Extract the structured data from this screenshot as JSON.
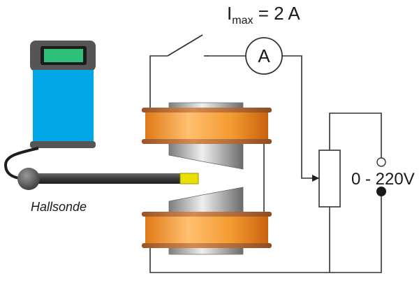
{
  "current_label": {
    "symbol": "I",
    "subscript": "max",
    "value": " = 2 A"
  },
  "ammeter": {
    "letter": "A"
  },
  "voltage": {
    "label": "0 - 220V"
  },
  "probe": {
    "label": "Hallsonde"
  },
  "colors": {
    "coil": "#f0962a",
    "coil_rim": "#b5652a",
    "meter_body": "#00a6e6",
    "meter_display": "#2fc07a",
    "meter_case": "#555555",
    "probe_tip": "#e8e000",
    "wire": "#333333"
  }
}
